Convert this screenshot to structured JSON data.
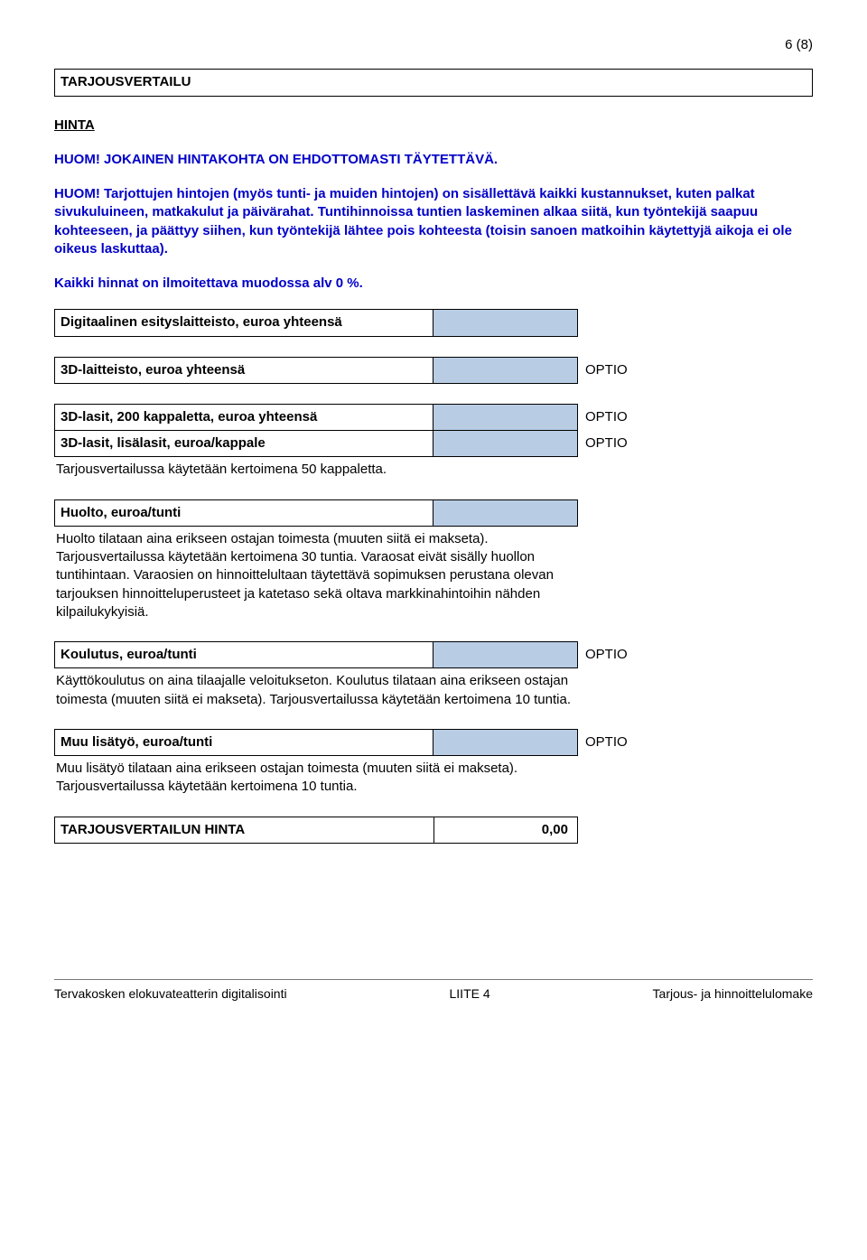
{
  "page_number": "6 (8)",
  "title_box": "TARJOUSVERTAILU",
  "hinta_heading": "HINTA",
  "blue_blocks": {
    "p1": "HUOM! JOKAINEN HINTAKOHTA ON EHDOTTOMASTI TÄYTETTÄVÄ.",
    "p2": "HUOM! Tarjottujen hintojen (myös tunti- ja muiden hintojen) on sisällettävä kaikki kustannukset, kuten palkat sivukuluineen, matkakulut ja päivärahat. Tuntihinnoissa tuntien laskeminen alkaa siitä, kun työntekijä saapuu kohteeseen, ja päättyy siihen, kun työntekijä lähtee pois kohteesta (toisin sanoen matkoihin käytettyjä aikoja ei ole oikeus laskuttaa).",
    "p3": "Kaikki hinnat on ilmoitettava muodossa alv 0 %."
  },
  "rows": {
    "digital": {
      "label": "Digitaalinen esityslaitteisto, euroa yhteensä"
    },
    "threeD": {
      "label": "3D-laitteisto, euroa yhteensä",
      "optio": "OPTIO"
    },
    "glasses200": {
      "label": "3D-lasit, 200 kappaletta, euroa yhteensä",
      "optio": "OPTIO"
    },
    "glassesExtra": {
      "label": "3D-lasit, lisälasit, euroa/kappale",
      "optio": "OPTIO"
    },
    "glassesNote": "Tarjousvertailussa käytetään kertoimena 50 kappaletta.",
    "huolto": {
      "label": "Huolto, euroa/tunti"
    },
    "huoltoNote": "Huolto tilataan aina erikseen ostajan toimesta (muuten siitä ei makseta). Tarjousvertailussa käytetään kertoimena 30 tuntia. Varaosat eivät sisälly huollon tuntihintaan. Varaosien on hinnoittelultaan täytettävä sopimuksen perustana olevan tarjouksen hinnoitteluperusteet ja katetaso sekä oltava markkinahintoihin nähden kilpailukykyisiä.",
    "koulutus": {
      "label": "Koulutus, euroa/tunti",
      "optio": "OPTIO"
    },
    "koulutusNote": "Käyttökoulutus on aina tilaajalle veloitukseton. Koulutus tilataan aina erikseen ostajan toimesta (muuten siitä ei makseta). Tarjousvertailussa käytetään kertoimena 10 tuntia.",
    "muu": {
      "label": "Muu lisätyö, euroa/tunti",
      "optio": "OPTIO"
    },
    "muuNote": "Muu lisätyö tilataan aina erikseen ostajan toimesta (muuten siitä ei makseta). Tarjousvertailussa käytetään kertoimena 10 tuntia."
  },
  "total": {
    "label": "TARJOUSVERTAILUN HINTA",
    "value": "0,00"
  },
  "footer": {
    "left": "Tervakosken elokuvateatterin digitalisointi",
    "center": "LIITE 4",
    "right": "Tarjous- ja hinnoittelulomake"
  },
  "colors": {
    "blue_text": "#0000c8",
    "input_bg": "#b8cce4",
    "border": "#000000",
    "background": "#ffffff"
  }
}
